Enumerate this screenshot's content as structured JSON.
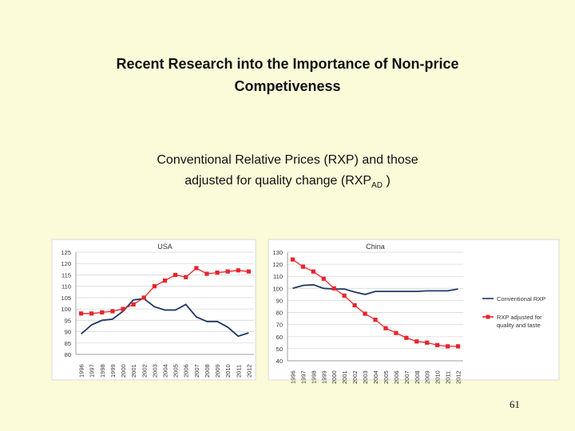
{
  "slide": {
    "title_line1": "Recent Research into the Importance of Non-price",
    "title_line2": "Competiveness",
    "subtitle_line1": "Conventional Relative Prices (RXP) and those",
    "subtitle_line2_prefix": "adjusted for quality change (RXP",
    "subtitle_line2_sub": "AD",
    "subtitle_line2_suffix": " )",
    "page_number": "61"
  },
  "colors": {
    "conventional": "#1f3864",
    "adjusted": "#e8242a",
    "grid": "#d9d9d9",
    "background": "#fbfbd9"
  },
  "chart_data": [
    {
      "type": "line",
      "title": "USA",
      "categories": [
        "1996",
        "1997",
        "1998",
        "1999",
        "2000",
        "2001",
        "2002",
        "2003",
        "2004",
        "2005",
        "2006",
        "2007",
        "2008",
        "2009",
        "2010",
        "2011",
        "2012"
      ],
      "ylim": [
        80,
        125
      ],
      "yticks": [
        80,
        85,
        90,
        95,
        100,
        105,
        110,
        115,
        120,
        125
      ],
      "grid": true,
      "series": [
        {
          "key": "conventional",
          "values": [
            89,
            93,
            95,
            95.5,
            99,
            104,
            104.5,
            101,
            99.5,
            99.5,
            102,
            96.5,
            94.5,
            94.5,
            92,
            88,
            89.5
          ]
        },
        {
          "key": "adjusted",
          "values": [
            98,
            98,
            98.5,
            99,
            100,
            102,
            105,
            110,
            112.5,
            115,
            114,
            118,
            115.5,
            116,
            116.5,
            117,
            116.5
          ]
        }
      ]
    },
    {
      "type": "line",
      "title": "China",
      "categories": [
        "1996",
        "1997",
        "1998",
        "1999",
        "2000",
        "2001",
        "2002",
        "2003",
        "2004",
        "2005",
        "2006",
        "2007",
        "2008",
        "2009",
        "2010",
        "2011",
        "2012"
      ],
      "ylim": [
        40,
        130
      ],
      "yticks": [
        40,
        50,
        60,
        70,
        80,
        90,
        100,
        110,
        120,
        130
      ],
      "grid": true,
      "legend": "right",
      "series": [
        {
          "key": "conventional",
          "name": "Conventional RXP",
          "values": [
            100,
            102.5,
            103,
            100,
            99.5,
            99.5,
            97,
            95,
            97.5,
            97.5,
            97.5,
            97.5,
            97.5,
            98,
            98,
            98,
            99.5
          ]
        },
        {
          "key": "adjusted",
          "name": "RXP adjusted for quality and taste",
          "values": [
            124,
            118,
            114,
            108,
            100,
            94,
            86,
            79,
            74,
            67,
            63,
            59,
            56,
            55,
            53,
            52,
            52
          ]
        }
      ]
    }
  ]
}
